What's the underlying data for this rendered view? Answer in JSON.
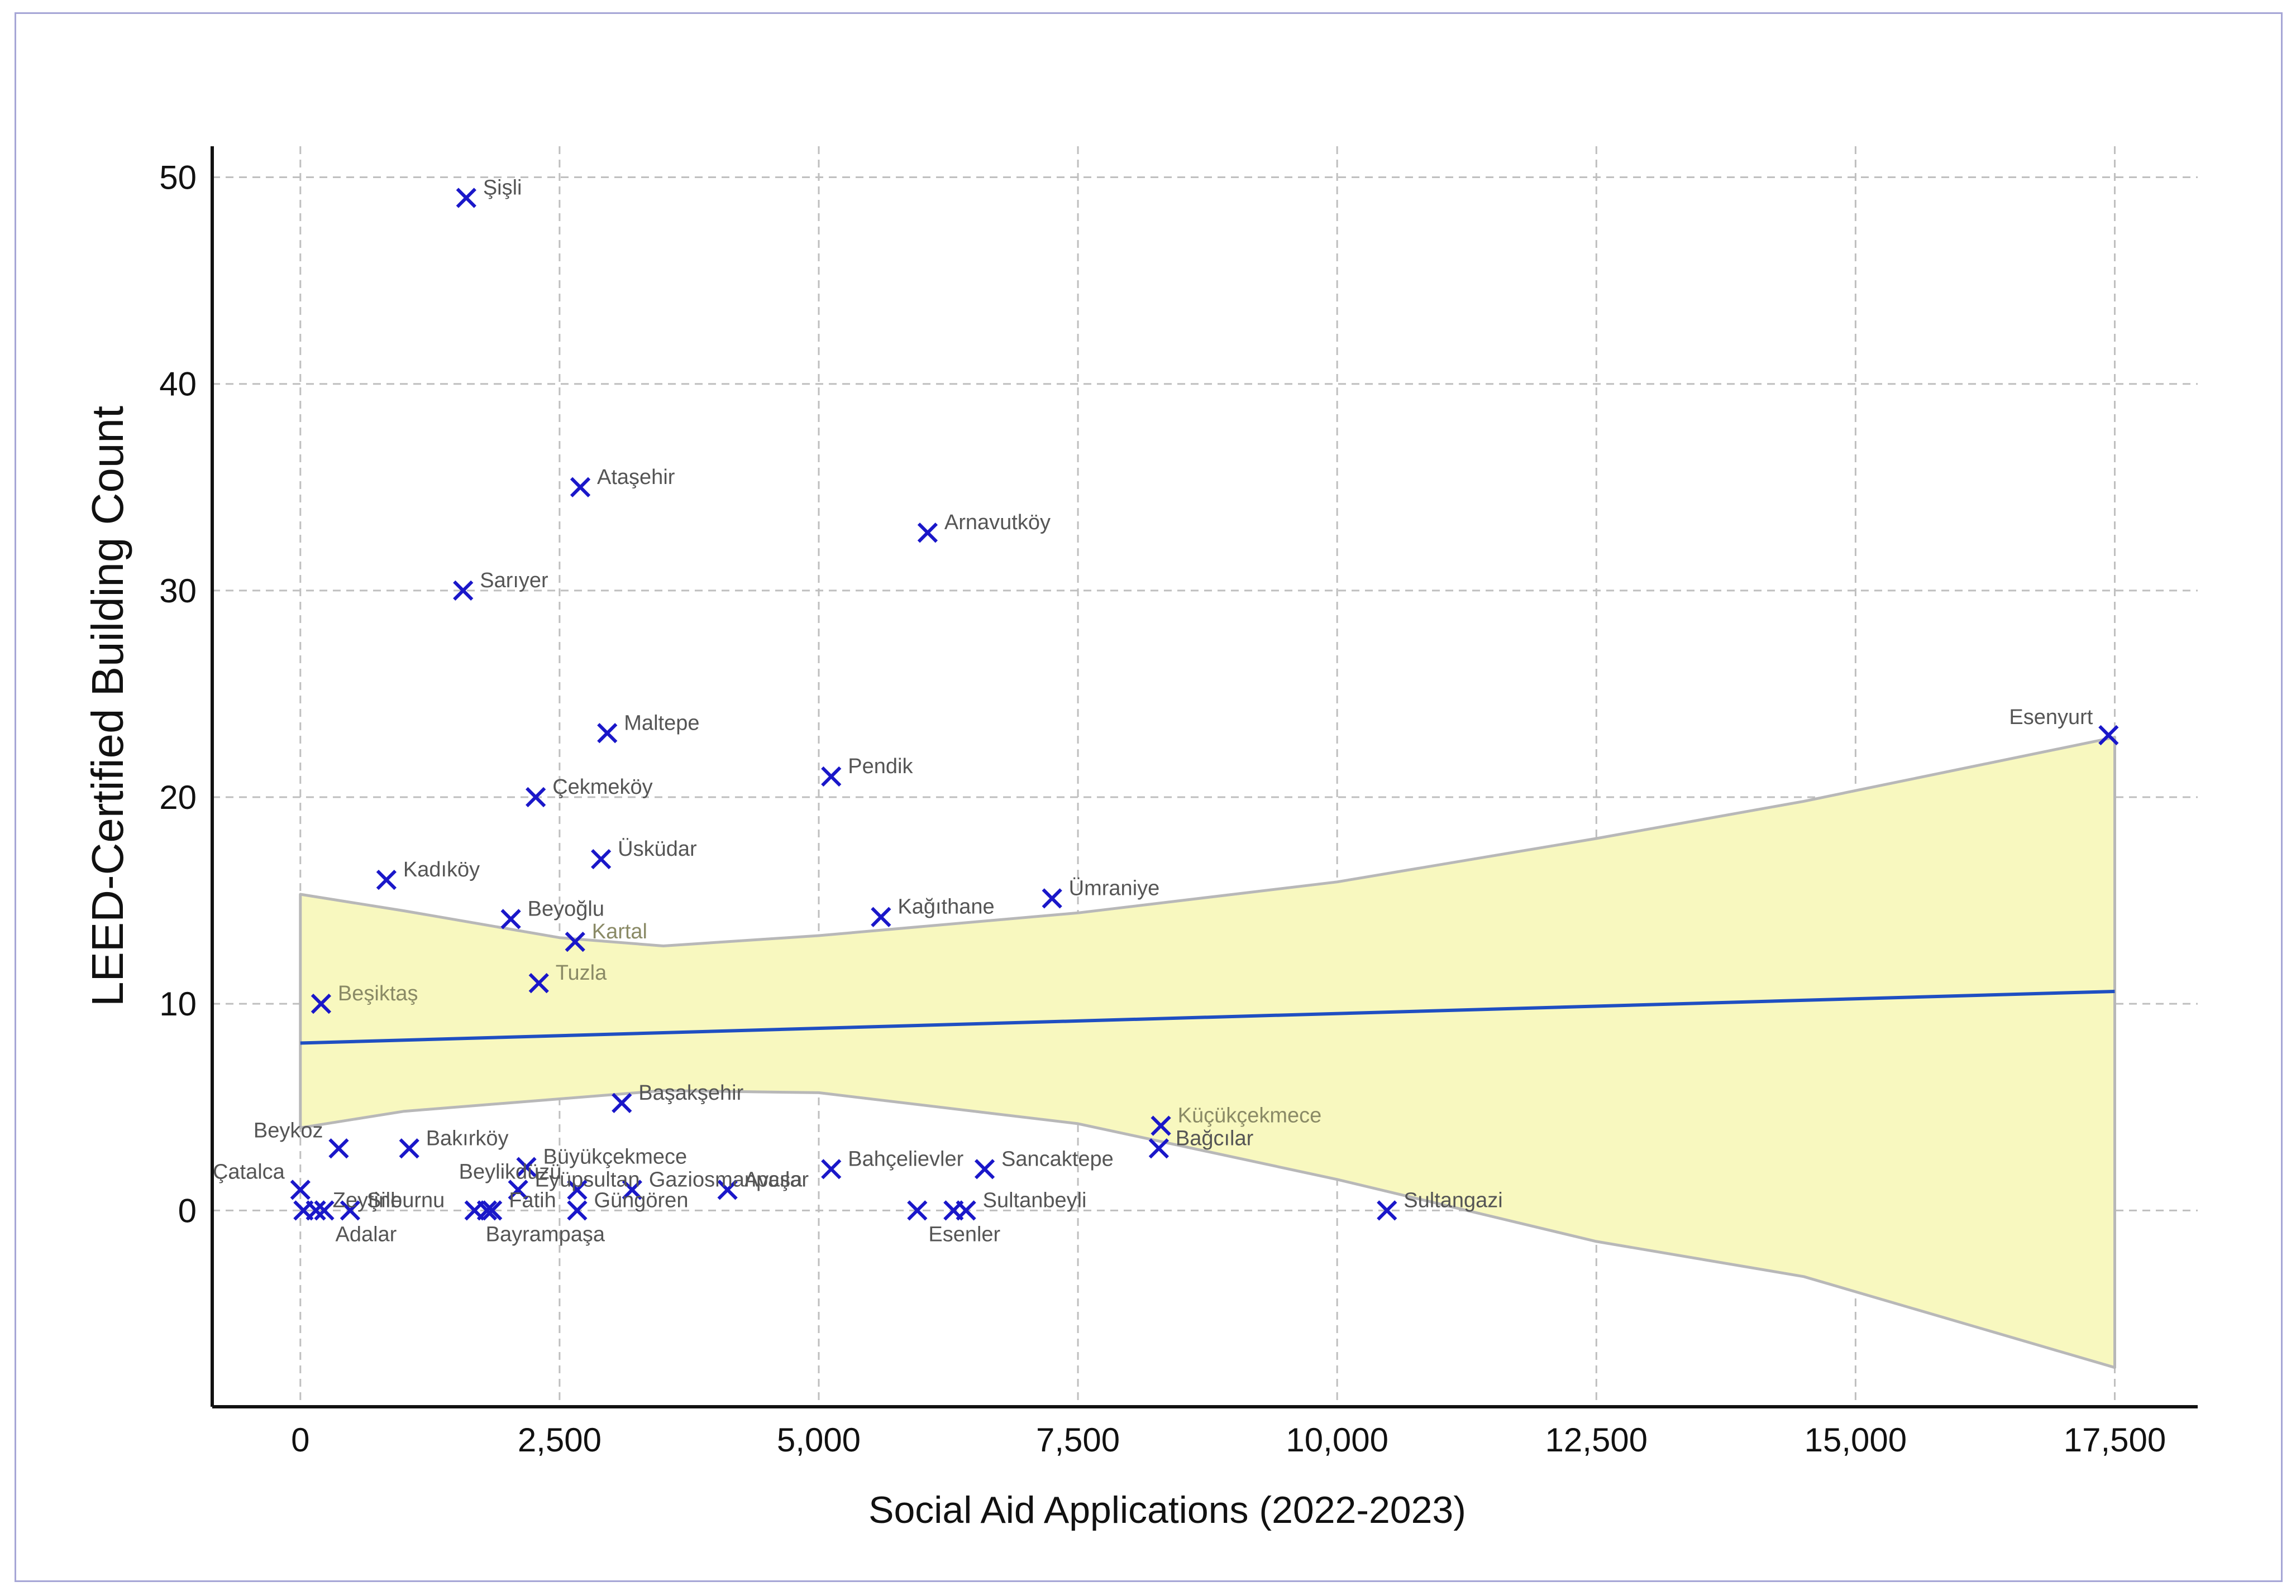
{
  "chart_data": {
    "type": "scatter",
    "xlabel": "Social Aid Applications  (2022-2023)",
    "ylabel": "LEED-Certified Building Count",
    "xlim": [
      -850,
      18300
    ],
    "ylim": [
      -9.5,
      51.5
    ],
    "xticks": [
      0,
      2500,
      5000,
      7500,
      10000,
      12500,
      15000,
      17500
    ],
    "xtick_labels": [
      "0",
      "2,500",
      "5,000",
      "7,500",
      "10,000",
      "12,500",
      "15,000",
      "17,500"
    ],
    "yticks": [
      0,
      10,
      20,
      30,
      40,
      50
    ],
    "ytick_labels": [
      "0",
      "10",
      "20",
      "30",
      "40",
      "50"
    ],
    "grid": true,
    "colors": {
      "marker": "#1a17c9",
      "fit_line": "#1f4fc2",
      "band_fill": "#f8f8bf",
      "band_edge": "#b8b8b8",
      "grid": "#bfbfbf",
      "axis": "#111111",
      "label_default": "#555555",
      "label_on_band": "#8a8a66"
    },
    "fit_line": {
      "x": [
        0,
        17500
      ],
      "y": [
        8.1,
        10.6
      ]
    },
    "confidence_band": {
      "x": [
        0,
        1000,
        2500,
        3500,
        5000,
        7500,
        10000,
        12500,
        14500,
        17500
      ],
      "upper": [
        15.3,
        14.5,
        13.2,
        12.8,
        13.3,
        14.4,
        15.9,
        18.0,
        19.8,
        22.9
      ],
      "lower": [
        4.0,
        4.8,
        5.4,
        5.8,
        5.7,
        4.2,
        1.5,
        -1.5,
        -3.2,
        -7.6
      ]
    },
    "points": [
      {
        "name": "Şişli",
        "x": 1600,
        "y": 49,
        "label_side": "right"
      },
      {
        "name": "Ataşehir",
        "x": 2700,
        "y": 35,
        "label_side": "right"
      },
      {
        "name": "Arnavutköy",
        "x": 6050,
        "y": 32.8,
        "label_side": "right"
      },
      {
        "name": "Sarıyer",
        "x": 1570,
        "y": 30,
        "label_side": "right"
      },
      {
        "name": "Maltepe",
        "x": 2960,
        "y": 23.1,
        "label_side": "right"
      },
      {
        "name": "Pendik",
        "x": 5120,
        "y": 21,
        "label_side": "right"
      },
      {
        "name": "Esenyurt",
        "x": 17440,
        "y": 23,
        "label_side": "left"
      },
      {
        "name": "Çekmeköy",
        "x": 2270,
        "y": 20,
        "label_side": "right"
      },
      {
        "name": "Üsküdar",
        "x": 2900,
        "y": 17,
        "label_side": "right"
      },
      {
        "name": "Kadıköy",
        "x": 830,
        "y": 16,
        "label_side": "right"
      },
      {
        "name": "Ümraniye",
        "x": 7250,
        "y": 15.1,
        "label_side": "right"
      },
      {
        "name": "Kağıthane",
        "x": 5600,
        "y": 14.2,
        "label_side": "right"
      },
      {
        "name": "Beyoğlu",
        "x": 2030,
        "y": 14.1,
        "label_side": "right"
      },
      {
        "name": "Kartal",
        "x": 2650,
        "y": 13,
        "label_side": "right"
      },
      {
        "name": "Tuzla",
        "x": 2300,
        "y": 11,
        "label_side": "right"
      },
      {
        "name": "Beşiktaş",
        "x": 200,
        "y": 10,
        "label_side": "right"
      },
      {
        "name": "Başakşehir",
        "x": 3100,
        "y": 5.2,
        "label_side": "right"
      },
      {
        "name": "Küçükçekmece",
        "x": 8300,
        "y": 4.1,
        "label_side": "right"
      },
      {
        "name": "Bağcılar",
        "x": 8280,
        "y": 3,
        "label_side": "right"
      },
      {
        "name": "Beykoz",
        "x": 370,
        "y": 3,
        "label_side": "left"
      },
      {
        "name": "Bakırköy",
        "x": 1050,
        "y": 3,
        "label_side": "right"
      },
      {
        "name": "Büyükçekmece",
        "x": 2180,
        "y": 2.1,
        "label_side": "right"
      },
      {
        "name": "Sancaktepe",
        "x": 6600,
        "y": 2,
        "label_side": "right"
      },
      {
        "name": "Bahçelievler",
        "x": 5120,
        "y": 2,
        "label_side": "right"
      },
      {
        "name": "Avcılar",
        "x": 4120,
        "y": 1,
        "label_side": "right"
      },
      {
        "name": "Eyüpsultan",
        "x": 2100,
        "y": 1,
        "label_side": "right"
      },
      {
        "name": "Beylikdüzü",
        "x": 2670,
        "y": 1,
        "label_side": "left"
      },
      {
        "name": "Çatalca",
        "x": 0,
        "y": 1,
        "label_side": "left"
      },
      {
        "name": "Gaziosmanpaşa",
        "x": 3200,
        "y": 1,
        "label_side": "right"
      },
      {
        "name": "Zeytinburnu",
        "x": 150,
        "y": 0,
        "label_side": "right"
      },
      {
        "name": "Adalar",
        "x": 230,
        "y": 0,
        "label_side": "below"
      },
      {
        "name": "Şile",
        "x": 480,
        "y": 0,
        "label_side": "right"
      },
      {
        "name": "Bayrampaşa",
        "x": 1680,
        "y": 0,
        "label_side": "below"
      },
      {
        "name": "Güngören",
        "x": 2670,
        "y": 0,
        "label_side": "right"
      },
      {
        "name": "Fatih",
        "x": 1850,
        "y": 0,
        "label_side": "right"
      },
      {
        "name": "Esenler",
        "x": 5950,
        "y": 0,
        "label_side": "below"
      },
      {
        "name": "Sultanbeyli",
        "x": 6420,
        "y": 0,
        "label_side": "right"
      },
      {
        "name": "Sultangazi",
        "x": 10480,
        "y": 0,
        "label_side": "right"
      },
      {
        "name": "",
        "x": 1800,
        "y": 0,
        "label_side": "none"
      },
      {
        "name": "",
        "x": 6300,
        "y": 0,
        "label_side": "none"
      },
      {
        "name": "",
        "x": 30,
        "y": 0,
        "label_side": "none"
      }
    ]
  }
}
